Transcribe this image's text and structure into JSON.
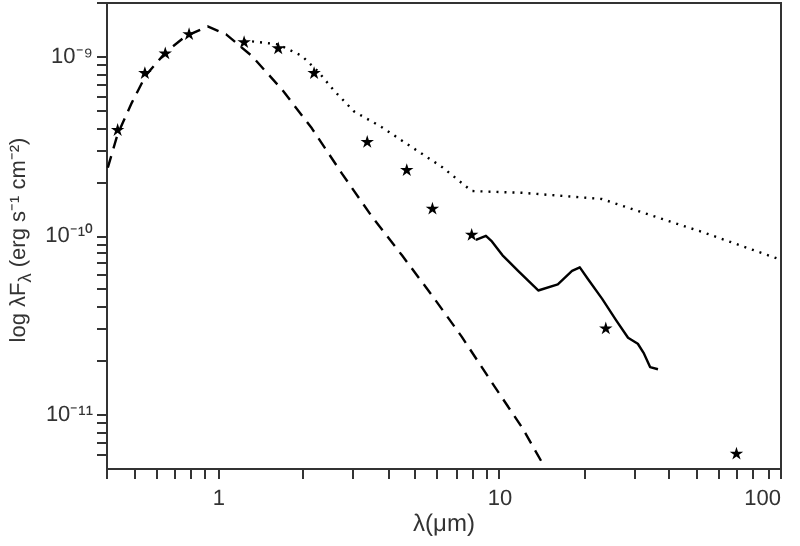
{
  "chart_data": {
    "type": "scatter",
    "xlabel": "λ(μm)",
    "ylabel": "log λF$_{λ}$ (erg s⁻¹ cm⁻²)",
    "log": "xy",
    "grid": false,
    "xlim": [
      0.4,
      100
    ],
    "ylim": [
      5e-12,
      2e-09
    ],
    "xticks": [
      {
        "value": 0.4,
        "label": null
      },
      {
        "value": 0.5,
        "label": null
      },
      {
        "value": 0.6,
        "label": null
      },
      {
        "value": 0.7,
        "label": null
      },
      {
        "value": 0.8,
        "label": null
      },
      {
        "value": 0.9,
        "label": null
      },
      1,
      {
        "value": 2,
        "label": null
      },
      {
        "value": 3,
        "label": null
      },
      {
        "value": 4,
        "label": null
      },
      {
        "value": 5,
        "label": null
      },
      {
        "value": 6,
        "label": null
      },
      {
        "value": 7,
        "label": null
      },
      {
        "value": 8,
        "label": null
      },
      {
        "value": 9,
        "label": null
      },
      10,
      {
        "value": 20,
        "label": null
      },
      {
        "value": 30,
        "label": null
      },
      {
        "value": 40,
        "label": null
      },
      {
        "value": 50,
        "label": null
      },
      {
        "value": 60,
        "label": null
      },
      {
        "value": 70,
        "label": null
      },
      {
        "value": 80,
        "label": null
      },
      {
        "value": 90,
        "label": null
      },
      100
    ],
    "yticks": [
      {
        "value": 6e-12,
        "label": null
      },
      {
        "value": 7e-12,
        "label": null
      },
      {
        "value": 8e-12,
        "label": null
      },
      {
        "value": 9e-12,
        "label": null
      },
      {
        "value": 1e-11,
        "label": "10⁻¹¹"
      },
      {
        "value": 2e-11,
        "label": null
      },
      {
        "value": 3e-11,
        "label": null
      },
      {
        "value": 4e-11,
        "label": null
      },
      {
        "value": 5e-11,
        "label": null
      },
      {
        "value": 6e-11,
        "label": null
      },
      {
        "value": 7e-11,
        "label": null
      },
      {
        "value": 8e-11,
        "label": null
      },
      {
        "value": 9e-11,
        "label": null
      },
      {
        "value": 1e-10,
        "label": "10⁻¹⁰"
      },
      {
        "value": 2e-10,
        "label": null
      },
      {
        "value": 3e-10,
        "label": null
      },
      {
        "value": 4e-10,
        "label": null
      },
      {
        "value": 5e-10,
        "label": null
      },
      {
        "value": 6e-10,
        "label": null
      },
      {
        "value": 7e-10,
        "label": null
      },
      {
        "value": 8e-10,
        "label": null
      },
      {
        "value": 9e-10,
        "label": null
      },
      {
        "value": 1e-09,
        "label": "10⁻⁹"
      },
      {
        "value": 2e-09,
        "label": null
      }
    ],
    "series": [
      {
        "marker": "star",
        "color": "#000000",
        "x": [
          0.44,
          0.55,
          0.65,
          0.79,
          1.24,
          1.64,
          2.2,
          3.4,
          4.7,
          5.8,
          8.0,
          24,
          70
        ],
        "values": [
          3.85e-10,
          8e-10,
          1.03e-09,
          1.32e-09,
          1.19e-09,
          1.1e-09,
          8e-10,
          3.3e-10,
          2.3e-10,
          1.4e-10,
          1e-10,
          3e-11,
          6e-12
        ]
      },
      {
        "type": "line",
        "line_style": "dashed",
        "color": "#000000",
        "x": [
          0.406,
          0.44,
          0.494,
          0.554,
          0.653,
          0.769,
          0.92,
          1.07,
          1.32,
          1.69,
          2.16,
          2.76,
          3.53,
          4.52,
          5.78,
          7.38,
          9.44,
          12.1,
          14.5
        ],
        "values": [
          2.38e-10,
          3.66e-10,
          5.47e-10,
          7.78e-10,
          1.05e-09,
          1.29e-09,
          1.46e-09,
          1.32e-09,
          1e-09,
          6.5e-10,
          3.94e-10,
          2.21e-10,
          1.27e-10,
          7.7e-11,
          4.6e-11,
          2.7e-11,
          1.5e-11,
          8.4e-12,
          5.1e-12
        ]
      },
      {
        "type": "line",
        "line_style": "dotted",
        "color": "#000000",
        "x": [
          1.24,
          1.64,
          1.99,
          2.27,
          2.59,
          3.05,
          3.83,
          4.74,
          6.27,
          8.0,
          12.1,
          23.2,
          32.2,
          52.8,
          100
        ],
        "values": [
          1.22e-09,
          1.16e-09,
          1e-09,
          8.2e-10,
          6.4e-10,
          4.9e-10,
          4e-10,
          3.2e-10,
          2.4e-10,
          1.76e-10,
          1.72e-10,
          1.59e-10,
          1.34e-10,
          1.04e-10,
          7.3e-11
        ]
      },
      {
        "type": "line",
        "line_style": "solid",
        "color": "#000000",
        "x": [
          8.28,
          8.99,
          9.44,
          10.3,
          11.7,
          13.8,
          16.2,
          18.2,
          19.4,
          20.7,
          23.3,
          26.1,
          28.8,
          31.2,
          32.8,
          34.5,
          36.8
        ],
        "values": [
          9.4e-11,
          9.9e-11,
          9.2e-11,
          7.7e-11,
          6.3e-11,
          4.9e-11,
          5.3e-11,
          6.3e-11,
          6.6e-11,
          5.7e-11,
          4.4e-11,
          3.35e-11,
          2.67e-11,
          2.47e-11,
          2.18e-11,
          1.83e-11,
          1.78e-11
        ]
      }
    ]
  }
}
